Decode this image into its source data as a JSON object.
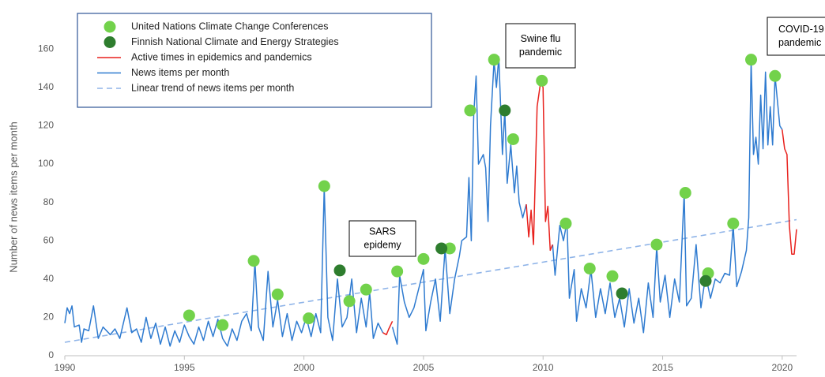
{
  "chart_data": {
    "type": "line",
    "y_label": "Number of news items per month",
    "xlim": [
      1990,
      2020.6
    ],
    "ylim": [
      0,
      170
    ],
    "xticks": [
      1990,
      1995,
      2000,
      2005,
      2010,
      2015,
      2020
    ],
    "yticks": [
      0,
      20,
      40,
      60,
      80,
      100,
      120,
      140,
      160
    ],
    "grid": false,
    "legend": "top-left",
    "series": [
      {
        "name": "United Nations Climate Change Conferences",
        "type": "scatter",
        "color": "#72d24b",
        "x": [
          1995.2,
          1996.6,
          1997.9,
          1998.9,
          2000.2,
          2000.85,
          2001.9,
          2002.6,
          2003.9,
          2005.0,
          2006.1,
          2006.95,
          2007.95,
          2008.75,
          2009.95,
          2010.95,
          2011.95,
          2012.9,
          2014.75,
          2015.95,
          2016.9,
          2017.95,
          2018.7,
          2019.7
        ],
        "values": [
          21,
          16,
          49.5,
          32,
          19.5,
          88.5,
          28.5,
          34.5,
          44,
          50.5,
          56,
          128,
          154.5,
          113,
          143.5,
          69,
          45.5,
          41.5,
          58,
          85,
          43,
          69,
          154.5,
          146
        ]
      },
      {
        "name": "Finnish National Climate and Energy Strategies",
        "type": "scatter",
        "color": "#2e7d2e",
        "x": [
          2001.5,
          2005.75,
          2008.4,
          2013.3,
          2016.8
        ],
        "values": [
          44.5,
          56,
          128,
          32.5,
          39
        ]
      },
      {
        "name": "Active times in epidemics and pandemics",
        "type": "line",
        "color": "#e8211d",
        "x": [
          2003.3,
          2003.45,
          2003.55,
          2003.7,
          2003.71,
          2009.3,
          2009.4,
          2009.5,
          2009.6,
          2009.75,
          2009.9,
          2010.0,
          2010.1,
          2010.2,
          2010.3,
          2010.4,
          2010.41,
          2020.0,
          2020.1,
          2020.2,
          2020.3,
          2020.4,
          2020.5,
          2020.6
        ],
        "values": [
          12,
          11,
          14,
          18,
          null,
          79,
          62,
          76,
          58,
          130,
          143,
          140,
          70,
          78,
          55,
          58,
          null,
          118,
          108,
          105,
          68,
          53,
          53,
          66
        ]
      },
      {
        "name": "News items per month",
        "type": "line",
        "color": "#2f7bd0",
        "x": [
          1990.0,
          1990.1,
          1990.2,
          1990.3,
          1990.4,
          1990.6,
          1990.7,
          1990.8,
          1991.0,
          1991.2,
          1991.4,
          1991.6,
          1991.9,
          1992.1,
          1992.3,
          1992.6,
          1992.8,
          1993.0,
          1993.2,
          1993.4,
          1993.6,
          1993.8,
          1994.0,
          1994.2,
          1994.4,
          1994.6,
          1994.8,
          1995.0,
          1995.2,
          1995.4,
          1995.6,
          1995.8,
          1996.0,
          1996.2,
          1996.4,
          1996.6,
          1996.8,
          1997.0,
          1997.2,
          1997.4,
          1997.6,
          1997.8,
          1997.95,
          1998.1,
          1998.3,
          1998.5,
          1998.7,
          1998.9,
          1999.1,
          1999.3,
          1999.5,
          1999.7,
          1999.9,
          2000.1,
          2000.3,
          2000.5,
          2000.7,
          2000.85,
          2001.0,
          2001.2,
          2001.4,
          2001.6,
          2001.8,
          2002.0,
          2002.2,
          2002.4,
          2002.6,
          2002.75,
          2002.9,
          2003.1,
          2003.3,
          2003.31,
          2003.7,
          2003.9,
          2004.0,
          2004.2,
          2004.4,
          2004.6,
          2004.8,
          2005.0,
          2005.1,
          2005.3,
          2005.5,
          2005.7,
          2005.9,
          2006.1,
          2006.3,
          2006.5,
          2006.6,
          2006.8,
          2006.9,
          2007.0,
          2007.1,
          2007.2,
          2007.3,
          2007.5,
          2007.6,
          2007.7,
          2007.8,
          2007.95,
          2008.05,
          2008.15,
          2008.3,
          2008.4,
          2008.5,
          2008.65,
          2008.8,
          2008.9,
          2009.0,
          2009.15,
          2009.3,
          2009.31,
          2010.4,
          2010.5,
          2010.6,
          2010.7,
          2010.85,
          2011.0,
          2011.1,
          2011.3,
          2011.4,
          2011.6,
          2011.8,
          2012.0,
          2012.2,
          2012.4,
          2012.6,
          2012.8,
          2013.0,
          2013.2,
          2013.4,
          2013.6,
          2013.8,
          2014.0,
          2014.2,
          2014.4,
          2014.6,
          2014.75,
          2014.9,
          2015.1,
          2015.3,
          2015.5,
          2015.7,
          2015.9,
          2016.0,
          2016.2,
          2016.4,
          2016.6,
          2016.8,
          2017.0,
          2017.2,
          2017.4,
          2017.6,
          2017.8,
          2017.95,
          2018.1,
          2018.3,
          2018.5,
          2018.6,
          2018.7,
          2018.8,
          2018.9,
          2019.0,
          2019.1,
          2019.2,
          2019.3,
          2019.4,
          2019.5,
          2019.6,
          2019.7,
          2019.9,
          2020.0
        ],
        "values": [
          17,
          25,
          22,
          26,
          15,
          16,
          7,
          14,
          13,
          26,
          9,
          15,
          11,
          14,
          9,
          25,
          12,
          14,
          7,
          20,
          9,
          17,
          6,
          15,
          5,
          13,
          7,
          16,
          10,
          6,
          15,
          8,
          18,
          10,
          19,
          9,
          5,
          14,
          8,
          18,
          22,
          13,
          49,
          15,
          8,
          44,
          15,
          29,
          10,
          22,
          8,
          18,
          12,
          20,
          10,
          22,
          12,
          88,
          20,
          8,
          40,
          15,
          20,
          40,
          12,
          30,
          15,
          33,
          9,
          17,
          12,
          null,
          15,
          6,
          42,
          28,
          20,
          25,
          35,
          45,
          13,
          28,
          40,
          18,
          56,
          22,
          40,
          52,
          60,
          62,
          93,
          60,
          126,
          146,
          100,
          105,
          98,
          70,
          120,
          154,
          140,
          156,
          105,
          128,
          90,
          110,
          85,
          99,
          80,
          72,
          79,
          null,
          58,
          42,
          55,
          68,
          60,
          70,
          30,
          45,
          18,
          35,
          25,
          45,
          20,
          35,
          22,
          38,
          20,
          30,
          15,
          35,
          17,
          30,
          12,
          38,
          20,
          57,
          28,
          42,
          20,
          40,
          28,
          85,
          26,
          30,
          58,
          25,
          42,
          30,
          40,
          38,
          43,
          42,
          68,
          36,
          44,
          55,
          72,
          154,
          105,
          114,
          100,
          136,
          108,
          148,
          110,
          130,
          110,
          146,
          120,
          118
        ]
      },
      {
        "name": "Linear trend of news items per month",
        "type": "line",
        "style": "dashed",
        "color": "#8fb4e8",
        "x": [
          1990,
          2020.6
        ],
        "values": [
          7,
          71
        ]
      }
    ],
    "annotations": [
      {
        "lines": [
          "SARS",
          "epidemy"
        ]
      },
      {
        "lines": [
          "Swine flu",
          "pandemic"
        ]
      },
      {
        "lines": [
          "COVID-19",
          "pandemic"
        ]
      }
    ]
  }
}
